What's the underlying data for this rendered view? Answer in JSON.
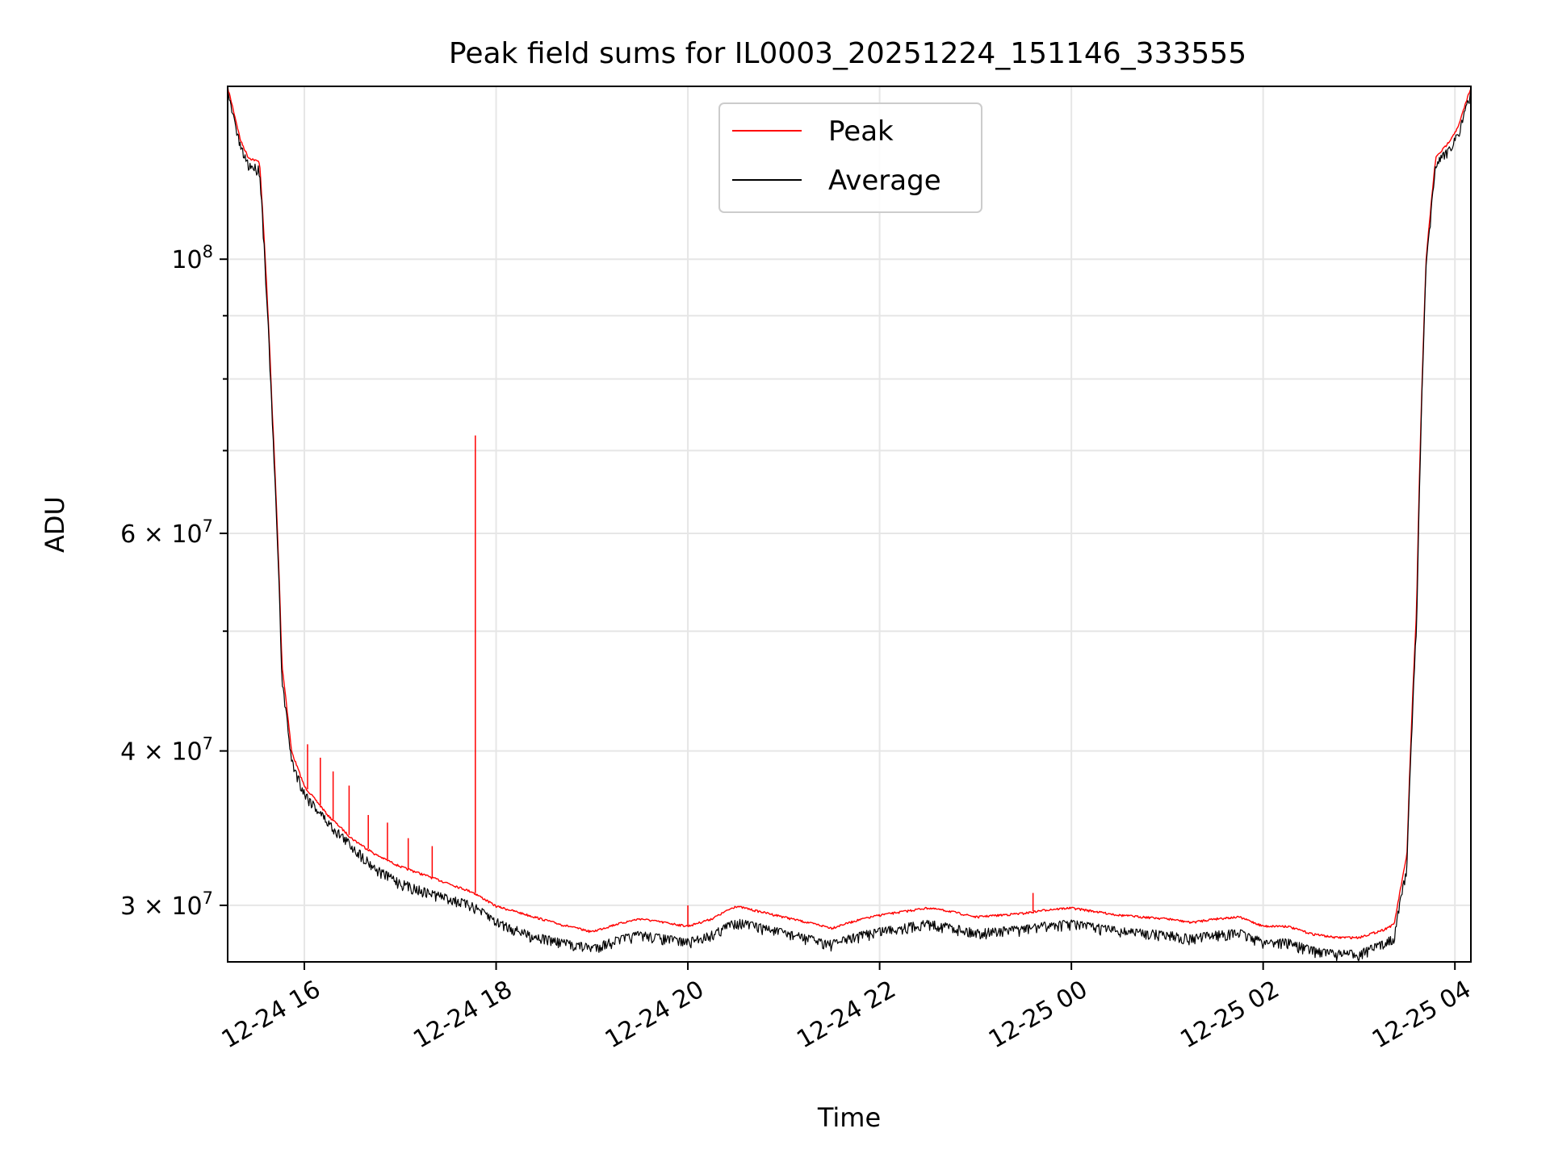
{
  "chart_data": {
    "type": "line",
    "title": "Peak field sums for IL0003_20251224_151146_333555",
    "xlabel": "Time",
    "ylabel": "ADU",
    "y_scale": "log",
    "grid": true,
    "legend_position": "top-center",
    "x_range": [
      "2024-12-24 15:12",
      "2024-12-25 04:10"
    ],
    "y_range": [
      27000000,
      138000000
    ],
    "x_ticks": [
      {
        "value": "2024-12-24 16:00",
        "label": "12-24 16"
      },
      {
        "value": "2024-12-24 18:00",
        "label": "12-24 18"
      },
      {
        "value": "2024-12-24 20:00",
        "label": "12-24 20"
      },
      {
        "value": "2024-12-24 22:00",
        "label": "12-24 22"
      },
      {
        "value": "2024-12-25 00:00",
        "label": "12-25 00"
      },
      {
        "value": "2024-12-25 02:00",
        "label": "12-25 02"
      },
      {
        "value": "2024-12-25 04:00",
        "label": "12-25 04"
      }
    ],
    "y_ticks": [
      {
        "value": 30000000,
        "base": "3",
        "exponent": "7",
        "label": "3 × 10^7"
      },
      {
        "value": 40000000,
        "base": "4",
        "exponent": "7",
        "label": "4 × 10^7"
      },
      {
        "value": 60000000,
        "base": "6",
        "exponent": "7",
        "label": "6 × 10^7"
      },
      {
        "value": 100000000,
        "base": "",
        "exponent": "8",
        "label": "10^8"
      }
    ],
    "y_minor_ticks": [
      50000000,
      70000000,
      80000000,
      90000000
    ],
    "series": [
      {
        "name": "Peak",
        "color": "#ff0000",
        "x": [
          "2024-12-24 15:12",
          "2024-12-24 15:20",
          "2024-12-24 15:25",
          "2024-12-24 15:32",
          "2024-12-24 15:40",
          "2024-12-24 15:46",
          "2024-12-24 15:52",
          "2024-12-24 16:00",
          "2024-12-24 16:15",
          "2024-12-24 16:30",
          "2024-12-24 16:45",
          "2024-12-24 17:00",
          "2024-12-24 17:15",
          "2024-12-24 17:30",
          "2024-12-24 17:45",
          "2024-12-24 18:00",
          "2024-12-24 18:20",
          "2024-12-24 18:40",
          "2024-12-24 19:00",
          "2024-12-24 19:15",
          "2024-12-24 19:30",
          "2024-12-24 19:45",
          "2024-12-24 20:00",
          "2024-12-24 20:15",
          "2024-12-24 20:30",
          "2024-12-24 20:45",
          "2024-12-24 21:00",
          "2024-12-24 21:15",
          "2024-12-24 21:30",
          "2024-12-24 21:45",
          "2024-12-24 22:00",
          "2024-12-24 22:15",
          "2024-12-24 22:30",
          "2024-12-24 22:45",
          "2024-12-24 23:00",
          "2024-12-24 23:15",
          "2024-12-24 23:30",
          "2024-12-24 23:45",
          "2024-12-25 00:00",
          "2024-12-25 00:15",
          "2024-12-25 00:30",
          "2024-12-25 00:45",
          "2024-12-25 01:00",
          "2024-12-25 01:15",
          "2024-12-25 01:30",
          "2024-12-25 01:45",
          "2024-12-25 02:00",
          "2024-12-25 02:15",
          "2024-12-25 02:30",
          "2024-12-25 02:45",
          "2024-12-25 03:00",
          "2024-12-25 03:15",
          "2024-12-25 03:22",
          "2024-12-25 03:30",
          "2024-12-25 03:36",
          "2024-12-25 03:42",
          "2024-12-25 03:48",
          "2024-12-25 03:55",
          "2024-12-25 04:02",
          "2024-12-25 04:10"
        ],
        "y": [
          138000000,
          125000000,
          121000000,
          120000000,
          75000000,
          47000000,
          40000000,
          37500000,
          35500000,
          34000000,
          33000000,
          32300000,
          31800000,
          31300000,
          30800000,
          30000000,
          29500000,
          29000000,
          28600000,
          29000000,
          29300000,
          29100000,
          28900000,
          29300000,
          30000000,
          29700000,
          29400000,
          29100000,
          28800000,
          29200000,
          29500000,
          29700000,
          29900000,
          29700000,
          29400000,
          29500000,
          29600000,
          29800000,
          29900000,
          29700000,
          29500000,
          29400000,
          29300000,
          29100000,
          29300000,
          29400000,
          28900000,
          28900000,
          28500000,
          28300000,
          28300000,
          28700000,
          29000000,
          33000000,
          52000000,
          100000000,
          121000000,
          124000000,
          128000000,
          138000000
        ],
        "spikes": [
          {
            "x": "2024-12-24 17:47",
            "y": 72000000
          },
          {
            "x": "2024-12-24 16:02",
            "y": 40500000
          },
          {
            "x": "2024-12-24 16:10",
            "y": 39500000
          },
          {
            "x": "2024-12-24 16:18",
            "y": 38500000
          },
          {
            "x": "2024-12-24 16:28",
            "y": 37500000
          },
          {
            "x": "2024-12-24 16:40",
            "y": 35500000
          },
          {
            "x": "2024-12-24 16:52",
            "y": 35000000
          },
          {
            "x": "2024-12-24 17:05",
            "y": 34000000
          },
          {
            "x": "2024-12-24 17:20",
            "y": 33500000
          },
          {
            "x": "2024-12-24 20:00",
            "y": 30000000
          },
          {
            "x": "2024-12-24 23:36",
            "y": 30700000
          }
        ]
      },
      {
        "name": "Average",
        "color": "#000000",
        "x": [
          "2024-12-24 15:12",
          "2024-12-24 15:20",
          "2024-12-24 15:25",
          "2024-12-24 15:32",
          "2024-12-24 15:40",
          "2024-12-24 15:46",
          "2024-12-24 15:52",
          "2024-12-24 16:00",
          "2024-12-24 16:15",
          "2024-12-24 16:30",
          "2024-12-24 16:45",
          "2024-12-24 17:00",
          "2024-12-24 17:15",
          "2024-12-24 17:30",
          "2024-12-24 17:45",
          "2024-12-24 18:00",
          "2024-12-24 18:20",
          "2024-12-24 18:40",
          "2024-12-24 19:00",
          "2024-12-24 19:15",
          "2024-12-24 19:30",
          "2024-12-24 19:45",
          "2024-12-24 20:00",
          "2024-12-24 20:15",
          "2024-12-24 20:30",
          "2024-12-24 20:45",
          "2024-12-24 21:00",
          "2024-12-24 21:15",
          "2024-12-24 21:30",
          "2024-12-24 21:45",
          "2024-12-24 22:00",
          "2024-12-24 22:15",
          "2024-12-24 22:30",
          "2024-12-24 22:45",
          "2024-12-24 23:00",
          "2024-12-24 23:15",
          "2024-12-24 23:30",
          "2024-12-24 23:45",
          "2024-12-25 00:00",
          "2024-12-25 00:15",
          "2024-12-25 00:30",
          "2024-12-25 00:45",
          "2024-12-25 01:00",
          "2024-12-25 01:15",
          "2024-12-25 01:30",
          "2024-12-25 01:45",
          "2024-12-25 02:00",
          "2024-12-25 02:15",
          "2024-12-25 02:30",
          "2024-12-25 02:45",
          "2024-12-25 03:00",
          "2024-12-25 03:15",
          "2024-12-25 03:22",
          "2024-12-25 03:30",
          "2024-12-25 03:36",
          "2024-12-25 03:42",
          "2024-12-25 03:48",
          "2024-12-25 03:55",
          "2024-12-25 04:02",
          "2024-12-25 04:10"
        ],
        "y": [
          137000000,
          124000000,
          120000000,
          119000000,
          74000000,
          46000000,
          39500000,
          37200000,
          35200000,
          33700000,
          32300000,
          31500000,
          31000000,
          30600000,
          30200000,
          29300000,
          28600000,
          28200000,
          27900000,
          28300000,
          28600000,
          28400000,
          28200000,
          28600000,
          29300000,
          29000000,
          28700000,
          28400000,
          28100000,
          28500000,
          28800000,
          29000000,
          29200000,
          29000000,
          28700000,
          28800000,
          28900000,
          29100000,
          29200000,
          29000000,
          28800000,
          28700000,
          28600000,
          28400000,
          28600000,
          28700000,
          28200000,
          28200000,
          27800000,
          27600000,
          27600000,
          28100000,
          28500000,
          32500000,
          51000000,
          99000000,
          120000000,
          123000000,
          127000000,
          137000000
        ],
        "noise": 0.02
      }
    ]
  }
}
